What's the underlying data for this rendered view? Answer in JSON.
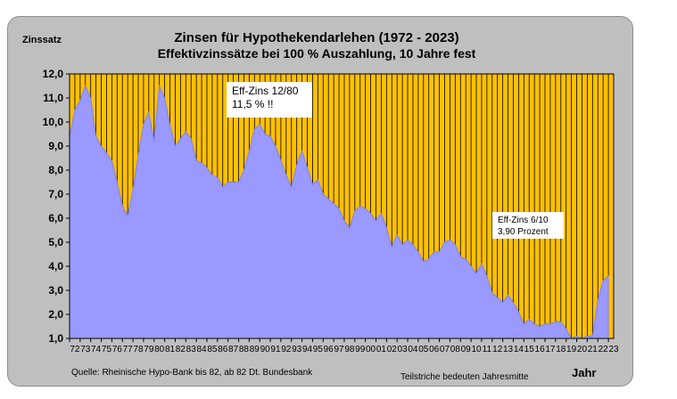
{
  "chart_data": {
    "type": "area",
    "title": "Zinsen für Hypothekendarlehen (1972 - 2023)",
    "subtitle": "Effektivzinssätze bei 100 % Auszahlung,  10 Jahre fest",
    "ylabel": "Zinssatz",
    "xlabel": "Jahr",
    "ylim": [
      1.0,
      12.0
    ],
    "y_ticks": [
      "1,0",
      "2,0",
      "3,0",
      "4,0",
      "5,0",
      "6,0",
      "7,0",
      "8,0",
      "9,0",
      "10,0",
      "11,0",
      "12,0"
    ],
    "x_tick_labels": [
      "72",
      "73",
      "74",
      "75",
      "76",
      "77",
      "78",
      "79",
      "80",
      "81",
      "82",
      "83",
      "84",
      "85",
      "86",
      "87",
      "88",
      "89",
      "90",
      "91",
      "92",
      "93",
      "94",
      "95",
      "96",
      "97",
      "98",
      "99",
      "00",
      "01",
      "02",
      "03",
      "04",
      "05",
      "06",
      "07",
      "08",
      "09",
      "10",
      "11",
      "12",
      "13",
      "14",
      "15",
      "16",
      "17",
      "18",
      "19",
      "20",
      "21",
      "22",
      "23"
    ],
    "grid": "vertical lines per half year",
    "colors": {
      "plot_background": "#ffc000",
      "area_fill": "#9999ff",
      "area_line": "#7f7fff",
      "frame": "#bfbfbf"
    },
    "series": [
      {
        "x": [
          1972.0,
          1972.5,
          1973.0,
          1973.5,
          1974.0,
          1974.5,
          1975.0,
          1975.5,
          1976.0,
          1976.5,
          1977.0,
          1977.5,
          1978.0,
          1978.5,
          1979.0,
          1979.5,
          1980.0,
          1980.5,
          1981.0,
          1981.5,
          1982.0,
          1982.5,
          1983.0,
          1983.5,
          1984.0,
          1984.5,
          1985.0,
          1985.5,
          1986.0,
          1986.5,
          1987.0,
          1987.5,
          1988.0,
          1988.5,
          1989.0,
          1989.5,
          1990.0,
          1990.5,
          1991.0,
          1991.5,
          1992.0,
          1992.5,
          1993.0,
          1993.5,
          1994.0,
          1994.5,
          1995.0,
          1995.5,
          1996.0,
          1996.5,
          1997.0,
          1997.5,
          1998.0,
          1998.5,
          1999.0,
          1999.5,
          2000.0,
          2000.5,
          2001.0,
          2001.5,
          2002.0,
          2002.5,
          2003.0,
          2003.5,
          2004.0,
          2004.5,
          2005.0,
          2005.5,
          2006.0,
          2006.5,
          2007.0,
          2007.5,
          2008.0,
          2008.5,
          2009.0,
          2009.5,
          2010.0,
          2010.5,
          2011.0,
          2011.5,
          2012.0,
          2012.5,
          2013.0,
          2013.5,
          2014.0,
          2014.5,
          2015.0,
          2015.5,
          2016.0,
          2016.5,
          2017.0,
          2017.5,
          2018.0,
          2018.5,
          2019.0,
          2019.5,
          2020.0,
          2020.5,
          2021.0,
          2021.5,
          2022.0,
          2022.5,
          2023.0
        ],
        "values": [
          9.4,
          10.5,
          10.9,
          11.5,
          11.0,
          9.4,
          9.0,
          8.7,
          8.4,
          7.5,
          6.5,
          6.1,
          7.2,
          8.6,
          9.9,
          10.4,
          9.2,
          11.5,
          11.0,
          9.9,
          9.0,
          9.3,
          9.6,
          9.3,
          8.4,
          8.3,
          8.1,
          7.8,
          7.7,
          7.3,
          7.5,
          7.5,
          7.5,
          8.0,
          8.8,
          9.7,
          9.9,
          9.5,
          9.4,
          9.0,
          8.4,
          7.8,
          7.3,
          8.2,
          8.8,
          8.1,
          7.4,
          7.6,
          7.0,
          6.8,
          6.6,
          6.4,
          5.9,
          5.6,
          6.3,
          6.5,
          6.4,
          6.2,
          5.9,
          6.2,
          5.6,
          4.8,
          5.3,
          4.9,
          5.1,
          4.9,
          4.6,
          4.2,
          4.3,
          4.6,
          4.6,
          5.0,
          5.1,
          4.9,
          4.4,
          4.3,
          4.0,
          3.7,
          4.1,
          3.6,
          2.9,
          2.7,
          2.5,
          2.8,
          2.5,
          2.1,
          1.6,
          1.8,
          1.6,
          1.5,
          1.6,
          1.6,
          1.7,
          1.7,
          1.4,
          1.0,
          1.1,
          0.9,
          1.1,
          1.1,
          2.6,
          3.4,
          3.6
        ]
      }
    ],
    "annotations": [
      {
        "text_lines": [
          "Eff-Zins 12/80",
          "11,5 %  !!"
        ]
      },
      {
        "text_lines": [
          "Eff-Zins 6/10",
          "3,90 Prozent"
        ]
      }
    ],
    "source": "Quelle: Rheinische Hypo-Bank bis 82, ab 82 Dt. Bundesbank",
    "tick_note": "Teilstriche bedeuten Jahresmitte"
  }
}
